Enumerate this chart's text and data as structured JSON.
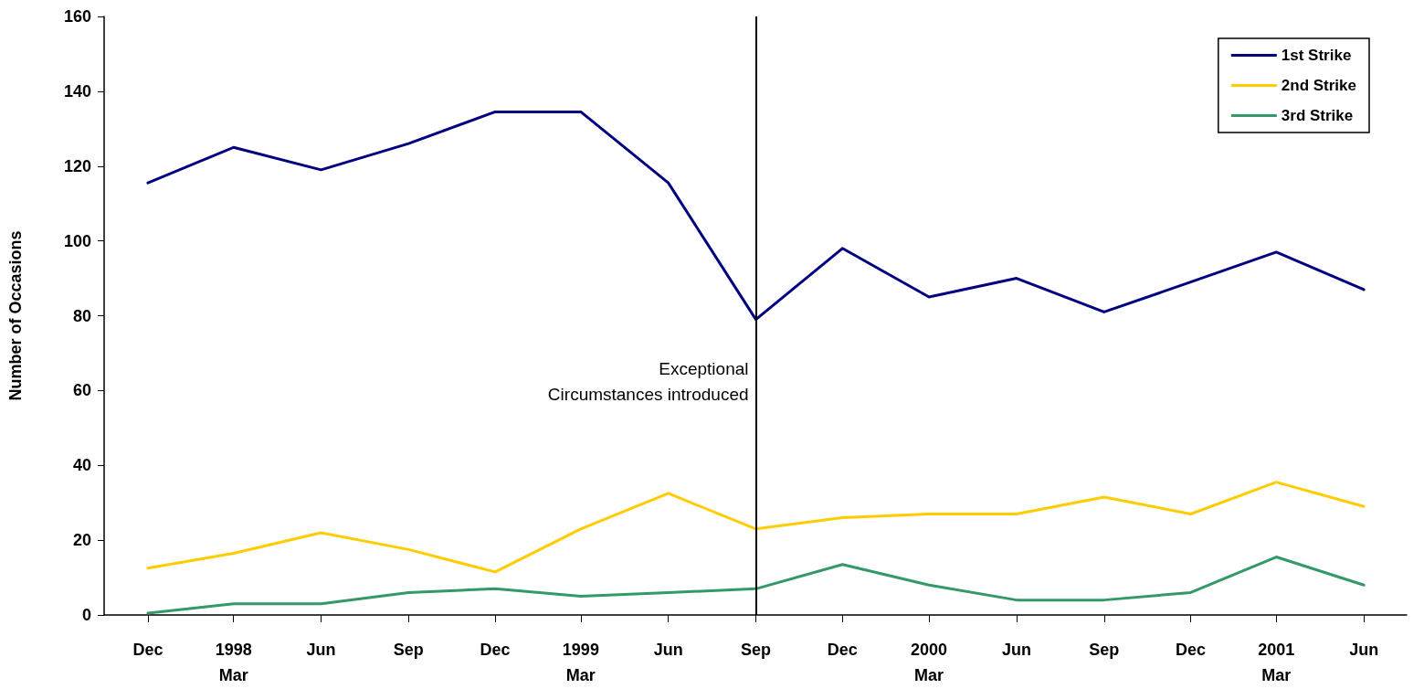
{
  "chart_data": {
    "type": "line",
    "ylabel": "Number of Occasions",
    "x": [
      "1997-12",
      "1998-03",
      "1998-06",
      "1998-09",
      "1998-12",
      "1999-03",
      "1999-06",
      "1999-09",
      "1999-12",
      "2000-03",
      "2000-06",
      "2000-09",
      "2000-12",
      "2001-03",
      "2001-06"
    ],
    "xlim": [
      "1997-10-16",
      "2001-07-16"
    ],
    "xticks": [
      {
        "value": "1997-12",
        "label": "Dec"
      },
      {
        "value": "1998-03",
        "label": "1998\nMar"
      },
      {
        "value": "1998-06",
        "label": "Jun"
      },
      {
        "value": "1998-09",
        "label": "Sep"
      },
      {
        "value": "1998-12",
        "label": "Dec"
      },
      {
        "value": "1999-03",
        "label": "1999\nMar"
      },
      {
        "value": "1999-06",
        "label": "Jun"
      },
      {
        "value": "1999-09",
        "label": "Sep"
      },
      {
        "value": "1999-12",
        "label": "Dec"
      },
      {
        "value": "2000-03",
        "label": "2000\nMar"
      },
      {
        "value": "2000-06",
        "label": "Jun"
      },
      {
        "value": "2000-09",
        "label": "Sep"
      },
      {
        "value": "2000-12",
        "label": "Dec"
      },
      {
        "value": "2001-03",
        "label": "2001\nMar"
      },
      {
        "value": "2001-06",
        "label": "Jun"
      }
    ],
    "ylim": [
      0,
      160
    ],
    "yticks": [
      0,
      20,
      40,
      60,
      80,
      100,
      120,
      140,
      160
    ],
    "series": [
      {
        "name": "1st Strike",
        "color": "#000080",
        "values": [
          115.5,
          125,
          119,
          126,
          134.5,
          134.5,
          115.5,
          79,
          98,
          85,
          90,
          81,
          89,
          97,
          87
        ]
      },
      {
        "name": "2nd Strike",
        "color": "#ffcc00",
        "values": [
          12.5,
          16.5,
          22,
          17.5,
          11.5,
          23,
          32.5,
          23,
          26,
          27,
          27,
          31.5,
          27,
          35.5,
          29
        ]
      },
      {
        "name": "3rd Strike",
        "color": "#339966",
        "values": [
          0.5,
          3,
          3,
          6,
          7,
          5,
          6,
          7,
          13.5,
          8,
          4,
          4,
          6,
          15.5,
          8
        ]
      }
    ],
    "ref_lines": [
      {
        "axis": "x",
        "value": "1999-09",
        "label": "Exceptional\nCircumstances introduced",
        "color": "#000000"
      }
    ],
    "grid": false,
    "legend": "top right",
    "marker": "none",
    "line_style": "solid"
  }
}
